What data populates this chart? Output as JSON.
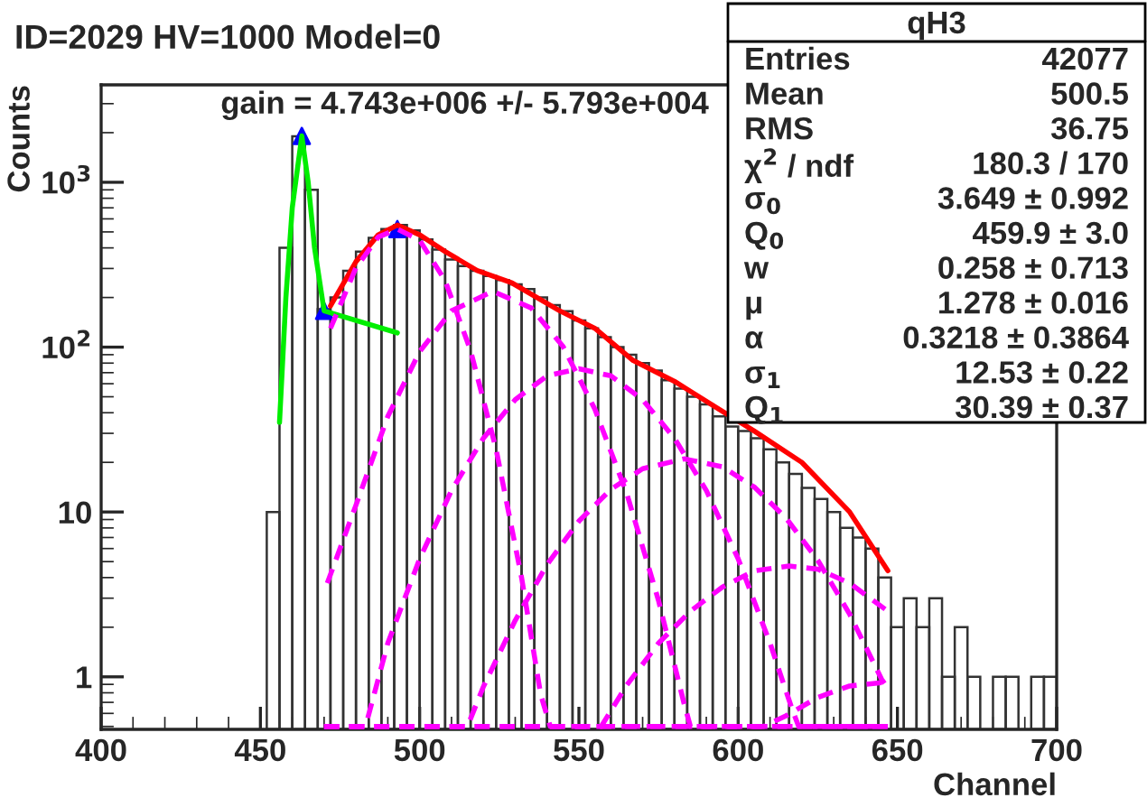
{
  "chart_data": {
    "type": "histogram",
    "title": "ID=2029 HV=1000 Model=0",
    "xlabel": "Channel",
    "ylabel": "Counts",
    "bins": [
      452,
      456,
      460,
      464,
      468,
      472,
      476,
      480,
      484,
      488,
      492,
      496,
      500,
      504,
      508,
      512,
      516,
      520,
      524,
      528,
      532,
      536,
      540,
      544,
      548,
      552,
      556,
      560,
      564,
      568,
      572,
      576,
      580,
      584,
      588,
      592,
      596,
      600,
      604,
      608,
      612,
      616,
      620,
      624,
      628,
      632,
      636,
      640,
      644,
      648,
      652,
      656,
      660,
      664,
      668,
      672,
      676,
      680,
      684,
      688,
      692,
      696,
      700
    ],
    "values": [
      10,
      400,
      1900,
      900,
      170,
      200,
      290,
      380,
      460,
      520,
      550,
      510,
      450,
      390,
      340,
      310,
      290,
      270,
      255,
      240,
      225,
      200,
      180,
      165,
      145,
      130,
      115,
      100,
      90,
      80,
      72,
      63,
      56,
      50,
      45,
      38,
      33,
      31,
      28,
      24,
      20,
      17,
      14,
      12,
      10,
      8,
      7,
      6,
      4,
      2,
      3,
      2,
      3,
      1,
      2,
      1,
      null,
      1,
      1,
      null,
      1,
      1
    ],
    "color": "#333333",
    "series": [
      {
        "type": "line",
        "color": "#00ee00",
        "line_style": "solid",
        "x": [
          456,
          458,
          460,
          463,
          465,
          467,
          470,
          493
        ],
        "values": [
          35,
          200,
          700,
          1910,
          1000,
          400,
          166,
          122
        ]
      },
      {
        "type": "line",
        "color": "#ff0000",
        "line_style": "solid",
        "x": [
          472,
          480,
          487,
          493,
          500,
          508,
          518,
          529,
          544,
          555,
          567,
          580,
          594,
          605,
          620,
          635,
          647
        ],
        "values": [
          178,
          330,
          480,
          550,
          480,
          380,
          292,
          245,
          166,
          130,
          83,
          62,
          42,
          31,
          20,
          10,
          4.4
        ]
      },
      {
        "type": "line",
        "color": "#ff00ff",
        "line_style": "dashed",
        "x": [
          472,
          480,
          487,
          493,
          500,
          508,
          516,
          524,
          532,
          538,
          541,
          647
        ],
        "values": [
          130,
          303,
          465,
          520,
          445,
          253,
          95,
          24,
          4.0,
          0.78,
          0.5,
          0.5
        ]
      },
      {
        "type": "line",
        "color": "#ff00ff",
        "line_style": "dashed",
        "x": [
          471,
          480,
          490,
          500,
          510,
          523,
          535,
          545,
          555,
          565,
          575,
          583,
          585,
          647
        ],
        "values": [
          3.7,
          11,
          38,
          94,
          166,
          218,
          173,
          101,
          42,
          13,
          2.9,
          0.69,
          0.5,
          0.5
        ]
      },
      {
        "type": "line",
        "color": "#ff00ff",
        "line_style": "dashed",
        "x": [
          470,
          483,
          490,
          500,
          510,
          520,
          530,
          540,
          550,
          560,
          570,
          580,
          590,
          600,
          610,
          617,
          619,
          647
        ],
        "values": [
          0.5,
          0.5,
          1.6,
          5.2,
          13.5,
          28,
          48,
          67,
          74,
          67,
          48,
          28,
          13.5,
          5.2,
          1.6,
          0.63,
          0.5,
          0.5
        ]
      },
      {
        "type": "line",
        "color": "#ff00ff",
        "line_style": "dashed",
        "x": [
          470,
          515,
          520,
          530,
          540,
          550,
          560,
          570,
          583,
          595,
          605,
          615,
          625,
          635,
          645,
          647
        ],
        "values": [
          0.5,
          0.5,
          0.87,
          2.2,
          4.8,
          8.8,
          13.7,
          18.3,
          21,
          18.8,
          14.2,
          9.2,
          5.1,
          2.4,
          0.97,
          0.85
        ]
      },
      {
        "type": "line",
        "color": "#ff00ff",
        "line_style": "dashed",
        "x": [
          470,
          557,
          565,
          575,
          585,
          595,
          605,
          616,
          625,
          635,
          647
        ],
        "values": [
          0.5,
          0.5,
          0.89,
          1.6,
          2.5,
          3.5,
          4.4,
          4.7,
          4.5,
          3.7,
          2.5
        ]
      },
      {
        "type": "line",
        "color": "#ff00ff",
        "line_style": "dashed",
        "x": [
          470,
          608,
          615,
          625,
          635,
          647
        ],
        "values": [
          0.5,
          0.5,
          0.58,
          0.75,
          0.88,
          0.93
        ]
      },
      {
        "type": "scatter",
        "color": "#0000ff",
        "marker": "triangle",
        "x": [
          463,
          470,
          493
        ],
        "values": [
          1910,
          166,
          520
        ]
      }
    ],
    "log": "y",
    "xlim": [
      400,
      700
    ],
    "xticks": [
      400,
      450,
      500,
      550,
      600,
      650,
      700
    ],
    "ylim": [
      0.48,
      3900
    ],
    "yticks": [
      1,
      10,
      {
        "value": 100,
        "label": "10$^{2}$"
      },
      {
        "value": 1000,
        "label": "10$^{3}$"
      }
    ],
    "grid": false,
    "annotations": [
      "gain = 4.743e+006 +/- 5.793e+004",
      "qH3",
      "Entries",
      "42077",
      "Mean",
      "500.5",
      "RMS",
      "36.75",
      "χ$^{2}$ / ndf",
      "180.3 / 170",
      "σ$_{0}$",
      "3.649 ± 0.992",
      "Q$_{0}$",
      "459.9 ± 3.0",
      "w",
      "0.258 ± 0.713",
      "μ",
      "1.278 ± 0.016",
      "α",
      "0.3218 ± 0.3864",
      "σ$_{1}$",
      "12.53 ± 0.22",
      "Q$_{1}$",
      "30.39 ± 0.37"
    ]
  }
}
